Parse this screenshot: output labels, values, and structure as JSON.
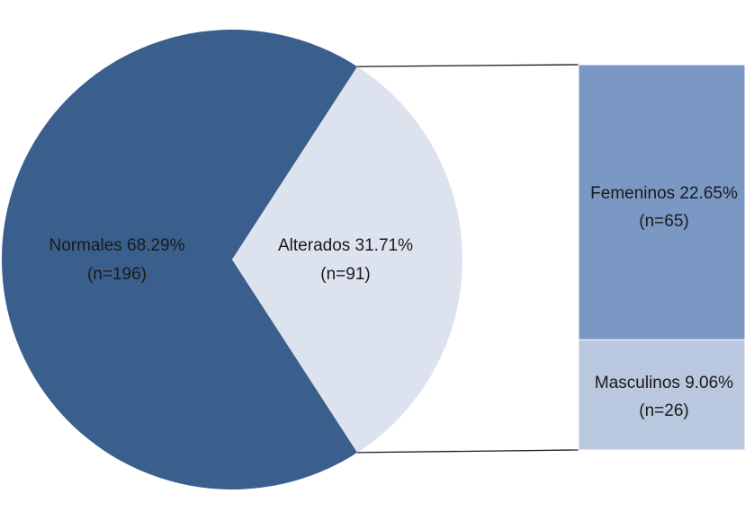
{
  "chart_data": {
    "type": "pie",
    "variant": "pie-of-bar",
    "pie": {
      "slices": [
        {
          "key": "normales",
          "label": "Normales 68.29%",
          "count_label": "(n=196)",
          "percent": 68.29,
          "n": 196,
          "color": "#3A5F8D"
        },
        {
          "key": "alterados",
          "label": "Alterados 31.71%",
          "count_label": "(n=91)",
          "percent": 31.71,
          "n": 91,
          "color": "#DCE3EF"
        }
      ]
    },
    "bar": {
      "breaks_down": "alterados",
      "segments": [
        {
          "key": "femeninos",
          "label": "Femeninos 22.65%",
          "count_label": "(n=65)",
          "percent": 22.65,
          "n": 65,
          "color": "#7B97C4"
        },
        {
          "key": "masculinos",
          "label": "Masculinos 9.06%",
          "count_label": "(n=26)",
          "percent": 9.06,
          "n": 26,
          "color": "#B9C7DF"
        }
      ]
    },
    "connector_color": "#1a1a1a"
  }
}
